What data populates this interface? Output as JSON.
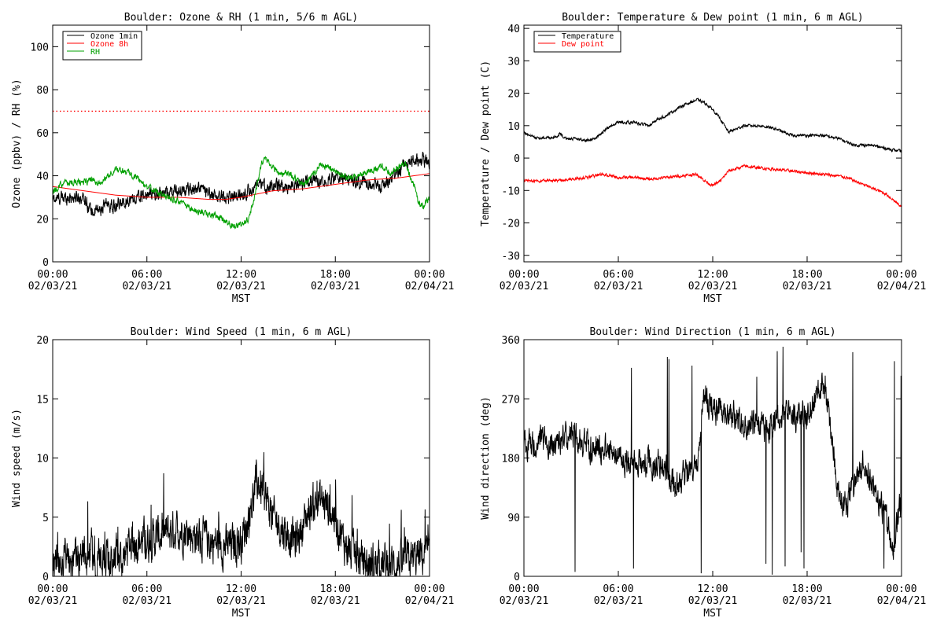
{
  "chart_data": [
    {
      "type": "line",
      "title": "Boulder: Ozone & RH (1 min, 5/6 m AGL)",
      "xlabel": "MST",
      "ylabel": "Ozone (ppbv) / RH (%)",
      "xlim": [
        0,
        24
      ],
      "ylim": [
        0,
        110
      ],
      "yticks": [
        0,
        20,
        40,
        60,
        80,
        100
      ],
      "xtick_labels": [
        [
          "00:00",
          "02/03/21"
        ],
        [
          "06:00",
          "02/03/21"
        ],
        [
          "12:00",
          "02/03/21"
        ],
        [
          "18:00",
          "02/03/21"
        ],
        [
          "00:00",
          "02/04/21"
        ]
      ],
      "legend": "top-left",
      "reference_line": {
        "y": 70,
        "color": "#ff0000",
        "style": "dotted"
      },
      "series": [
        {
          "name": "Ozone 1min",
          "color": "#000000",
          "noise": 2.5,
          "x": [
            0,
            1,
            2,
            2.5,
            3,
            3.5,
            4,
            4.5,
            5,
            5.5,
            6,
            7,
            8,
            9,
            9.5,
            10,
            11,
            12,
            12.5,
            13,
            14,
            15,
            15.5,
            16,
            17,
            18,
            19,
            20,
            20.5,
            21,
            21.5,
            22,
            22.5,
            23,
            23.5,
            24
          ],
          "y": [
            29,
            30,
            30,
            23,
            24,
            27,
            25,
            28,
            29,
            30,
            31,
            32,
            33,
            34,
            34,
            31,
            30,
            31,
            33,
            35,
            35,
            35,
            36,
            37,
            38,
            39,
            38,
            37,
            36,
            35,
            38,
            41,
            46,
            47,
            48,
            46
          ]
        },
        {
          "name": "Ozone 8h",
          "color": "#ff0000",
          "noise": 0,
          "x": [
            0,
            2,
            4,
            6,
            8,
            10,
            11,
            12,
            14,
            16,
            18,
            20,
            22,
            24
          ],
          "y": [
            35,
            33,
            31,
            30,
            30,
            29,
            29,
            30,
            33,
            34,
            36,
            38,
            39,
            41
          ]
        },
        {
          "name": "RH",
          "color": "#00a000",
          "noise": 1.2,
          "x": [
            0,
            0.5,
            1,
            2,
            2.5,
            3,
            3.5,
            4,
            4.5,
            5,
            5.5,
            6,
            7,
            8,
            9,
            10,
            10.5,
            11,
            11.5,
            12,
            12.5,
            13,
            13.3,
            13.6,
            14,
            14.5,
            15,
            16,
            16.5,
            17,
            17.5,
            18,
            18.5,
            19,
            19.5,
            20,
            20.5,
            21,
            21.5,
            22,
            22.5,
            23,
            23.3,
            23.6,
            24
          ],
          "y": [
            32,
            36,
            37,
            37,
            38,
            36,
            40,
            43,
            42,
            41,
            38,
            35,
            31,
            28,
            24,
            22,
            21,
            19,
            17,
            17,
            20,
            35,
            46,
            48,
            44,
            41,
            41,
            36,
            39,
            45,
            44,
            42,
            40,
            39,
            40,
            42,
            43,
            44,
            41,
            44,
            45,
            36,
            27,
            26,
            30
          ]
        }
      ]
    },
    {
      "type": "line",
      "title": "Boulder: Temperature & Dew point (1 min, 6 m AGL)",
      "xlabel": "MST",
      "ylabel": "Temperature / Dew point (C)",
      "xlim": [
        0,
        24
      ],
      "ylim": [
        -32,
        41
      ],
      "yticks": [
        -30,
        -20,
        -10,
        0,
        10,
        20,
        30,
        40
      ],
      "xtick_labels": [
        [
          "00:00",
          "02/03/21"
        ],
        [
          "06:00",
          "02/03/21"
        ],
        [
          "12:00",
          "02/03/21"
        ],
        [
          "18:00",
          "02/03/21"
        ],
        [
          "00:00",
          "02/04/21"
        ]
      ],
      "legend": "top-left",
      "series": [
        {
          "name": "Temperature",
          "color": "#000000",
          "noise": 0.35,
          "x": [
            0,
            0.3,
            1,
            2,
            2.3,
            2.6,
            3,
            4,
            4.5,
            5,
            5.5,
            6,
            7,
            8,
            8.5,
            9,
            10,
            10.5,
            11,
            11.5,
            12,
            12.5,
            13,
            14,
            15,
            16,
            17,
            18,
            19,
            20,
            21,
            21.5,
            22,
            23,
            24
          ],
          "y": [
            8,
            7,
            6,
            6.5,
            7.5,
            6,
            6,
            5.5,
            6,
            8,
            10,
            11,
            11,
            10,
            12,
            13,
            16,
            17,
            18,
            17,
            15,
            12,
            8,
            10,
            10,
            9,
            7,
            7,
            7,
            6,
            4,
            4,
            4,
            3,
            2
          ]
        },
        {
          "name": "Dew point",
          "color": "#ff0000",
          "noise": 0.35,
          "x": [
            0,
            1,
            2,
            3,
            4,
            5,
            5.5,
            6,
            7,
            8,
            9,
            10,
            11,
            11.5,
            12,
            12.5,
            13,
            14,
            15,
            16,
            17,
            18,
            19,
            20,
            20.5,
            21,
            21.5,
            22,
            22.5,
            23,
            23.5,
            24
          ],
          "y": [
            -7,
            -7,
            -7,
            -6.5,
            -6,
            -5,
            -5.5,
            -6,
            -6,
            -6.5,
            -6,
            -5.5,
            -5,
            -7,
            -8.5,
            -7,
            -4,
            -2.5,
            -3,
            -3.5,
            -4,
            -4.5,
            -5,
            -5.5,
            -6,
            -7,
            -8,
            -9,
            -10,
            -11,
            -13,
            -15
          ]
        }
      ]
    },
    {
      "type": "line",
      "title": "Boulder: Wind Speed (1 min, 6 m AGL)",
      "xlabel": "MST",
      "ylabel": "Wind speed (m/s)",
      "xlim": [
        0,
        24
      ],
      "ylim": [
        0,
        20
      ],
      "yticks": [
        0,
        5,
        10,
        15,
        20
      ],
      "xtick_labels": [
        [
          "00:00",
          "02/03/21"
        ],
        [
          "06:00",
          "02/03/21"
        ],
        [
          "12:00",
          "02/03/21"
        ],
        [
          "18:00",
          "02/03/21"
        ],
        [
          "00:00",
          "02/04/21"
        ]
      ],
      "series": [
        {
          "name": "",
          "color": "#000000",
          "noise": 1.4,
          "x": [
            0,
            1,
            2,
            3,
            4,
            4.5,
            5,
            6,
            7,
            8,
            9,
            10,
            11,
            12,
            12.5,
            13,
            13.5,
            14,
            15,
            15.5,
            16,
            16.5,
            17,
            17.5,
            18,
            18.5,
            19,
            20,
            21,
            22,
            23,
            24
          ],
          "y": [
            1.5,
            1.5,
            1.5,
            1.5,
            1.5,
            1.5,
            3,
            3,
            3.5,
            4,
            3.5,
            3,
            2.5,
            3,
            5,
            8,
            7,
            5,
            3.5,
            3,
            4.5,
            6,
            6.5,
            6,
            5,
            3,
            2,
            1,
            1,
            1,
            1.5,
            2
          ]
        }
      ]
    },
    {
      "type": "line",
      "title": "Boulder: Wind Direction (1 min, 6 m AGL)",
      "xlabel": "MST",
      "ylabel": "Wind direction (deg)",
      "xlim": [
        0,
        24
      ],
      "ylim": [
        0,
        360
      ],
      "yticks": [
        0,
        90,
        180,
        270,
        360
      ],
      "xtick_labels": [
        [
          "00:00",
          "02/03/21"
        ],
        [
          "06:00",
          "02/03/21"
        ],
        [
          "12:00",
          "02/03/21"
        ],
        [
          "18:00",
          "02/03/21"
        ],
        [
          "00:00",
          "02/04/21"
        ]
      ],
      "series": [
        {
          "name": "",
          "color": "#000000",
          "noise": 18,
          "x": [
            0,
            1,
            2,
            3,
            4,
            5,
            6,
            7,
            8,
            9,
            9.5,
            10,
            10.5,
            11,
            11.5,
            12,
            13,
            14,
            15,
            15.5,
            16,
            17,
            18,
            18.5,
            19,
            19.5,
            20,
            20.5,
            21,
            21.5,
            22,
            22.5,
            23,
            23.5,
            24
          ],
          "y": [
            200,
            210,
            200,
            220,
            200,
            190,
            180,
            175,
            170,
            165,
            140,
            150,
            160,
            170,
            280,
            250,
            245,
            235,
            230,
            225,
            240,
            245,
            245,
            270,
            300,
            230,
            120,
            110,
            140,
            170,
            150,
            120,
            90,
            40,
            120
          ]
        }
      ]
    }
  ]
}
